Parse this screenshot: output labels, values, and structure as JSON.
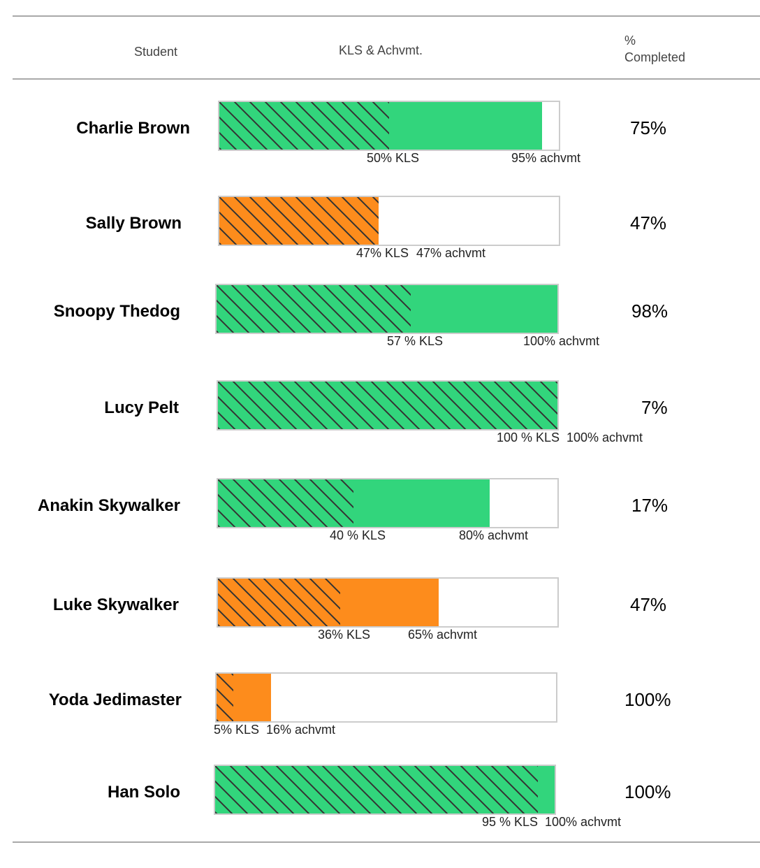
{
  "header": {
    "student_label": "Student",
    "kls_label": "KLS & Achvmt.",
    "completed_line1": "%",
    "completed_line2": "Completed"
  },
  "colors": {
    "on_track": "#32d57c",
    "behind": "#fd8c1c",
    "hatch_line": "#333333",
    "bar_border": "#cccccc"
  },
  "chart_data": {
    "type": "bar",
    "orientation": "horizontal",
    "xlim": [
      0,
      100
    ],
    "students": [
      {
        "name": "Charlie Brown",
        "kls": 50,
        "achvmt": 95,
        "completed": 75,
        "status": "green",
        "kls_label": "50% KLS",
        "achvmt_label": "95% achvmt",
        "completed_label": "75%"
      },
      {
        "name": "Sally Brown",
        "kls": 47,
        "achvmt": 47,
        "completed": 47,
        "status": "orange",
        "kls_label": "47% KLS",
        "achvmt_label": "47% achvmt",
        "completed_label": "47%"
      },
      {
        "name": "Snoopy Thedog",
        "kls": 57,
        "achvmt": 100,
        "completed": 98,
        "status": "green",
        "kls_label": "57 % KLS",
        "achvmt_label": "100% achvmt",
        "completed_label": "98%"
      },
      {
        "name": "Lucy Pelt",
        "kls": 100,
        "achvmt": 100,
        "completed": 7,
        "status": "green",
        "kls_label": "100 % KLS",
        "achvmt_label": "100% achvmt",
        "completed_label": "7%"
      },
      {
        "name": "Anakin Skywalker",
        "kls": 40,
        "achvmt": 80,
        "completed": 17,
        "status": "green",
        "kls_label": "40 % KLS",
        "achvmt_label": "80% achvmt",
        "completed_label": "17%"
      },
      {
        "name": "Luke Skywalker",
        "kls": 36,
        "achvmt": 65,
        "completed": 47,
        "status": "orange",
        "kls_label": "36% KLS",
        "achvmt_label": "65% achvmt",
        "completed_label": "47%"
      },
      {
        "name": "Yoda Jedimaster",
        "kls": 5,
        "achvmt": 16,
        "completed": 100,
        "status": "orange",
        "kls_label": "5% KLS",
        "achvmt_label": "16% achvmt",
        "completed_label": "100%"
      },
      {
        "name": "Han Solo",
        "kls": 95,
        "achvmt": 100,
        "completed": 100,
        "status": "green",
        "kls_label": "95 % KLS",
        "achvmt_label": "100% achvmt",
        "completed_label": "100%"
      }
    ]
  }
}
